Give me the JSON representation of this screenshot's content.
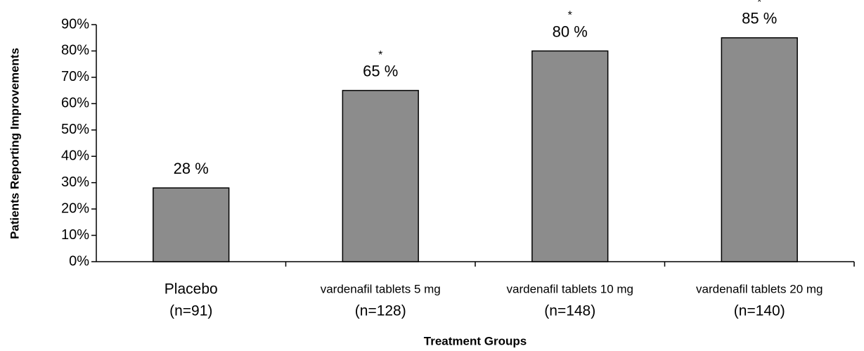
{
  "chart_data": {
    "type": "bar",
    "y_axis_label": "Patients Reporting Improvements",
    "x_axis_label": "Treatment Groups",
    "categories": [
      [
        "Placebo",
        "(n=91)"
      ],
      [
        "vardenafil tablets 5 mg",
        "(n=128)"
      ],
      [
        "vardenafil tablets 10 mg",
        "(n=148)"
      ],
      [
        "vardenafil tablets 20 mg",
        "(n=140)"
      ]
    ],
    "values": [
      28,
      65,
      80,
      85
    ],
    "value_labels": [
      "28 %",
      "65 %",
      "80 %",
      "85 %"
    ],
    "markers": [
      null,
      "*",
      "*",
      "*"
    ],
    "color": "#8c8c8c",
    "ylim": [
      0,
      90
    ],
    "yticks": [
      {
        "value": 0,
        "label": "0%"
      },
      {
        "value": 10,
        "label": "10%"
      },
      {
        "value": 20,
        "label": "20%"
      },
      {
        "value": 30,
        "label": "30%"
      },
      {
        "value": 40,
        "label": "40%"
      },
      {
        "value": 50,
        "label": "50%"
      },
      {
        "value": 60,
        "label": "60%"
      },
      {
        "value": 70,
        "label": "70%"
      },
      {
        "value": 80,
        "label": "80%"
      },
      {
        "value": 90,
        "label": "90%"
      }
    ],
    "grid": false
  }
}
